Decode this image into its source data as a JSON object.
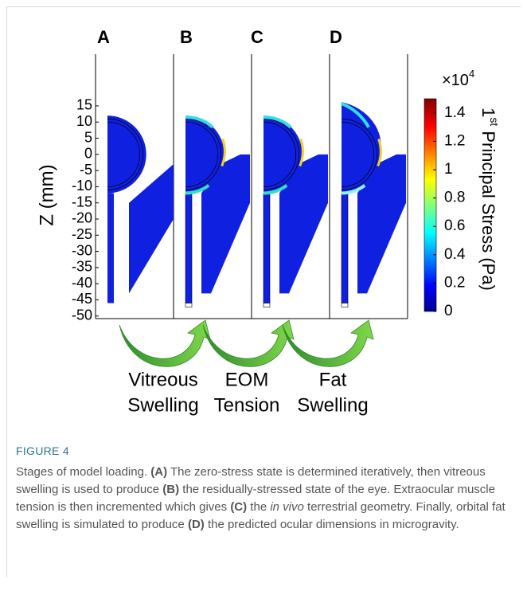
{
  "figure": {
    "panel_labels": [
      "A",
      "B",
      "C",
      "D"
    ],
    "y_axis": {
      "label": "Z (mm)",
      "ylim": [
        -50.8,
        31
      ],
      "yticks": [
        15,
        10,
        5,
        0,
        -5,
        -10,
        -15,
        -20,
        -25,
        -30,
        -35,
        -40,
        -45,
        -50
      ]
    },
    "colorbar": {
      "multiplier": "×10",
      "multiplier_exp": "4",
      "label_num": "1",
      "label_sup": "st",
      "label_rest": " Principal Stress (Pa)",
      "lim": [
        0,
        1.5
      ],
      "ticks": [
        0,
        0.2,
        0.4,
        0.6,
        0.8,
        1,
        1.2,
        1.4
      ]
    },
    "stages": [
      [
        "Vitreous",
        "Swelling"
      ],
      [
        "EOM",
        "Tension"
      ],
      [
        "Fat",
        "Swelling"
      ]
    ]
  },
  "caption": {
    "label": "FIGURE 4",
    "segments": [
      "Stages of model loading. ",
      "(A)",
      " The zero-stress state is determined iteratively, then vitreous swelling is used to produce ",
      "(B)",
      " the residually-stressed state of the eye. Extraocular muscle tension is then incremented which gives ",
      "(C)",
      " the ",
      "in vivo",
      " terrestrial geometry. Finally, orbital fat swelling is simulated to produce ",
      "(D)",
      " the predicted ocular dimensions in microgravity."
    ]
  }
}
